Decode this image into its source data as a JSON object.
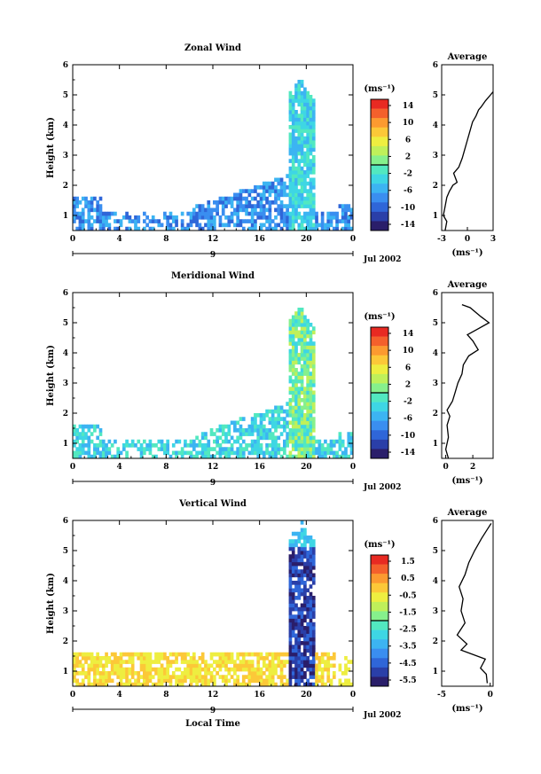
{
  "date_label": "Jul 2002",
  "day_label": "9",
  "xlabel": "Local Time",
  "avg_title": "Average",
  "unit_label": "(ms⁻¹)",
  "colors": [
    "#2a1e6a",
    "#2a3fa8",
    "#2f66d8",
    "#3a8ef0",
    "#3cb4f2",
    "#3ed6e4",
    "#52e8c0",
    "#86f08c",
    "#bff05a",
    "#eeee40",
    "#fcc838",
    "#fc9a30",
    "#f4602c",
    "#e82a22"
  ],
  "chart_data": [
    {
      "type": "heatmap",
      "title": "Zonal Wind",
      "xlabel": "",
      "ylabel": "Height (km)",
      "xlim": [
        0,
        24
      ],
      "ylim": [
        0.5,
        6
      ],
      "xticks": [
        "0",
        "4",
        "8",
        "12",
        "16",
        "20",
        "0"
      ],
      "yticks": [
        "1",
        "2",
        "3",
        "4",
        "5",
        "6"
      ],
      "colorbar": {
        "unit": "(ms⁻¹)",
        "ticks": [
          "14",
          "10",
          "6",
          "2",
          "-2",
          "-6",
          "-10",
          "-14"
        ],
        "range": [
          -14,
          14
        ]
      },
      "average": {
        "xticks": [
          "-3",
          "0",
          "3"
        ],
        "xlim": [
          -3,
          3
        ],
        "ylim": [
          0.5,
          6
        ],
        "xlabel": "(ms⁻¹)",
        "profile": [
          [
            -2.6,
            0.5
          ],
          [
            -2.4,
            0.8
          ],
          [
            -2.8,
            1.0
          ],
          [
            -2.6,
            1.3
          ],
          [
            -2.4,
            1.6
          ],
          [
            -2.1,
            1.8
          ],
          [
            -1.7,
            2.0
          ],
          [
            -1.2,
            2.1
          ],
          [
            -1.6,
            2.4
          ],
          [
            -1.0,
            2.6
          ],
          [
            -0.6,
            2.9
          ],
          [
            -0.3,
            3.2
          ],
          [
            0.0,
            3.5
          ],
          [
            0.3,
            3.8
          ],
          [
            0.6,
            4.1
          ],
          [
            1.0,
            4.3
          ],
          [
            1.3,
            4.5
          ],
          [
            1.6,
            4.6
          ],
          [
            2.1,
            4.8
          ],
          [
            2.7,
            5.0
          ],
          [
            3.0,
            5.1
          ]
        ]
      }
    },
    {
      "type": "heatmap",
      "title": "Meridional Wind",
      "xlabel": "",
      "ylabel": "Height (km)",
      "xlim": [
        0,
        24
      ],
      "ylim": [
        0.5,
        6
      ],
      "xticks": [
        "0",
        "4",
        "8",
        "12",
        "16",
        "20",
        "0"
      ],
      "yticks": [
        "1",
        "2",
        "3",
        "4",
        "5",
        "6"
      ],
      "colorbar": {
        "unit": "(ms⁻¹)",
        "ticks": [
          "14",
          "10",
          "6",
          "2",
          "-2",
          "-6",
          "-10",
          "-14"
        ],
        "range": [
          -14,
          14
        ]
      },
      "average": {
        "xticks": [
          "0",
          "2"
        ],
        "xlim": [
          -0.3,
          3.5
        ],
        "ylim": [
          0.5,
          6
        ],
        "xlabel": "(ms⁻¹)",
        "profile": [
          [
            0.2,
            0.5
          ],
          [
            0.0,
            0.8
          ],
          [
            0.2,
            1.2
          ],
          [
            0.1,
            1.6
          ],
          [
            0.3,
            1.9
          ],
          [
            0.1,
            2.1
          ],
          [
            0.5,
            2.4
          ],
          [
            0.7,
            2.7
          ],
          [
            0.9,
            3.0
          ],
          [
            1.2,
            3.3
          ],
          [
            1.3,
            3.6
          ],
          [
            1.7,
            3.9
          ],
          [
            2.4,
            4.1
          ],
          [
            2.0,
            4.4
          ],
          [
            1.6,
            4.6
          ],
          [
            2.4,
            4.8
          ],
          [
            3.2,
            5.0
          ],
          [
            2.6,
            5.2
          ],
          [
            1.8,
            5.5
          ],
          [
            1.2,
            5.6
          ]
        ]
      }
    },
    {
      "type": "heatmap",
      "title": "Vertical Wind",
      "xlabel": "Local Time",
      "ylabel": "Height (km)",
      "xlim": [
        0,
        24
      ],
      "ylim": [
        0.5,
        6
      ],
      "xticks": [
        "0",
        "4",
        "8",
        "12",
        "16",
        "20",
        "0"
      ],
      "yticks": [
        "1",
        "2",
        "3",
        "4",
        "5",
        "6"
      ],
      "colorbar": {
        "unit": "(ms⁻¹)",
        "ticks": [
          "1.5",
          "0.5",
          "-0.5",
          "-1.5",
          "-2.5",
          "-3.5",
          "-4.5",
          "-5.5"
        ],
        "range": [
          -6,
          2
        ]
      },
      "average": {
        "xticks": [
          "-5",
          "0"
        ],
        "xlim": [
          -5,
          0.3
        ],
        "ylim": [
          0.5,
          6
        ],
        "xlabel": "(ms⁻¹)",
        "profile": [
          [
            -0.3,
            0.6
          ],
          [
            -0.4,
            0.9
          ],
          [
            -1.0,
            1.1
          ],
          [
            -0.5,
            1.4
          ],
          [
            -3.0,
            1.7
          ],
          [
            -2.4,
            1.9
          ],
          [
            -3.4,
            2.2
          ],
          [
            -2.6,
            2.6
          ],
          [
            -3.0,
            3.0
          ],
          [
            -2.8,
            3.4
          ],
          [
            -3.2,
            3.8
          ],
          [
            -2.6,
            4.2
          ],
          [
            -2.2,
            4.6
          ],
          [
            -1.6,
            5.0
          ],
          [
            -0.9,
            5.4
          ],
          [
            -0.3,
            5.7
          ],
          [
            0.1,
            5.9
          ]
        ]
      }
    }
  ]
}
